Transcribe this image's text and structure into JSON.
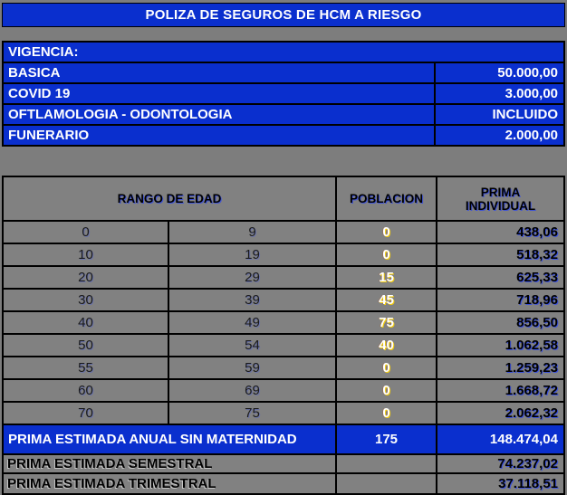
{
  "colors": {
    "accent_blue": "#0a2fce",
    "background_gray": "#7d7d7d",
    "cell_gray": "#818181",
    "grid_line": "#000000",
    "population_text": "#ffffff",
    "population_shadow_yellow": "#ffd400",
    "money_shadow_blue": "#2b46f0"
  },
  "title": "POLIZA DE SEGUROS DE HCM A RIESGO",
  "coverage": {
    "header": "VIGENCIA:",
    "rows": [
      {
        "label": "BASICA",
        "value": "50.000,00"
      },
      {
        "label": "COVID 19",
        "value": "3.000,00"
      },
      {
        "label": "OFTLAMOLOGIA - ODONTOLOGIA",
        "value": "INCLUIDO"
      },
      {
        "label": "FUNERARIO",
        "value": "2.000,00"
      }
    ]
  },
  "table": {
    "header": {
      "age_range": "RANGO DE EDAD",
      "population": "POBLACION",
      "premium_line1": "PRIMA",
      "premium_line2": "INDIVIDUAL"
    },
    "rows": [
      {
        "from": "0",
        "to": "9",
        "population": "0",
        "premium": "438,06"
      },
      {
        "from": "10",
        "to": "19",
        "population": "0",
        "premium": "518,32"
      },
      {
        "from": "20",
        "to": "29",
        "population": "15",
        "premium": "625,33"
      },
      {
        "from": "30",
        "to": "39",
        "population": "45",
        "premium": "718,96"
      },
      {
        "from": "40",
        "to": "49",
        "population": "75",
        "premium": "856,50"
      },
      {
        "from": "50",
        "to": "54",
        "population": "40",
        "premium": "1.062,58"
      },
      {
        "from": "55",
        "to": "59",
        "population": "0",
        "premium": "1.259,23"
      },
      {
        "from": "60",
        "to": "69",
        "population": "0",
        "premium": "1.668,72"
      },
      {
        "from": "70",
        "to": "75",
        "population": "0",
        "premium": "2.062,32"
      }
    ],
    "total": {
      "label": "PRIMA ESTIMADA ANUAL SIN MATERNIDAD",
      "population": "175",
      "premium": "148.474,04"
    },
    "subtotals": [
      {
        "label": "PRIMA ESTIMADA SEMESTRAL",
        "premium": "74.237,02"
      },
      {
        "label": "PRIMA ESTIMADA TRIMESTRAL",
        "premium": "37.118,51"
      }
    ]
  }
}
